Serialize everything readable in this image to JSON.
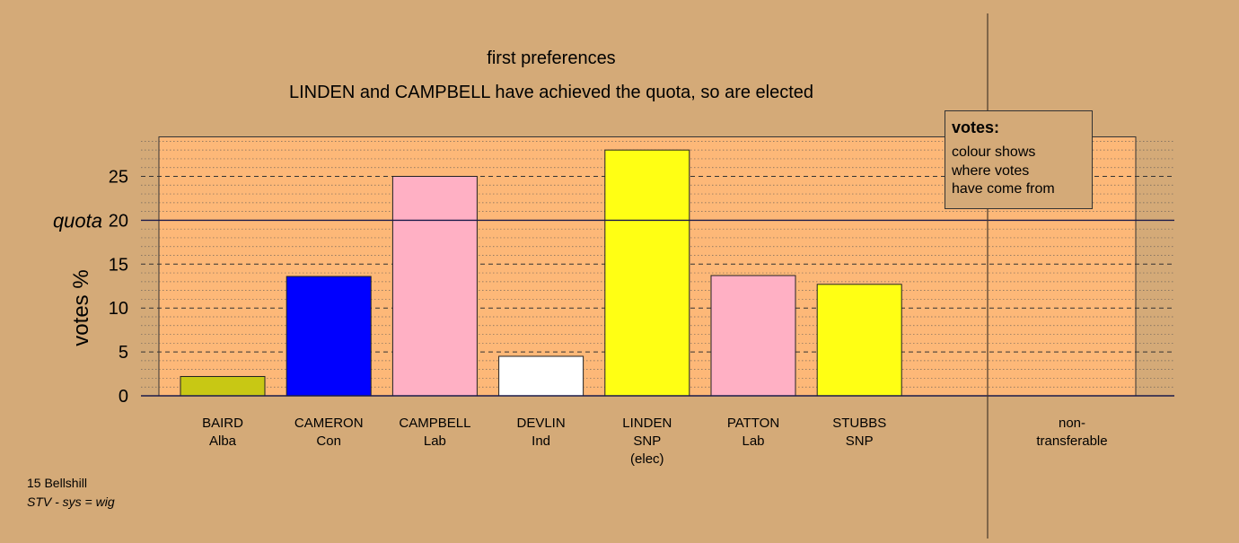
{
  "chart_data": {
    "type": "bar",
    "title": "first preferences",
    "subtitle": "LINDEN and CAMPBELL have achieved the quota, so are elected",
    "ylabel": "votes %",
    "xlabel": "",
    "ylim": [
      0,
      29.5
    ],
    "yticks": [
      0,
      5,
      10,
      15,
      20,
      25
    ],
    "quota": {
      "value": 20,
      "label": "quota"
    },
    "grid": true,
    "categories": [
      {
        "name": "BAIRD",
        "party": "Alba",
        "note": ""
      },
      {
        "name": "CAMERON",
        "party": "Con",
        "note": ""
      },
      {
        "name": "CAMPBELL",
        "party": "Lab",
        "note": ""
      },
      {
        "name": "DEVLIN",
        "party": "Ind",
        "note": ""
      },
      {
        "name": "LINDEN",
        "party": "SNP",
        "note": "(elec)"
      },
      {
        "name": "PATTON",
        "party": "Lab",
        "note": ""
      },
      {
        "name": "STUBBS",
        "party": "SNP",
        "note": ""
      }
    ],
    "values": [
      2.2,
      13.6,
      25.0,
      4.5,
      28.0,
      13.7,
      12.7
    ],
    "bar_colors": [
      "#c8c814",
      "#0000ff",
      "#ffb0c4",
      "#ffffff",
      "#ffff14",
      "#ffb0c4",
      "#ffff14"
    ],
    "non_transferable": {
      "line1": "non-",
      "line2": "transferable",
      "value": 0
    },
    "legend": {
      "title": "votes:",
      "lines": [
        "colour shows",
        "where votes",
        "have come from"
      ],
      "placement": "top-right"
    }
  },
  "footer": {
    "line1": "15 Bellshill",
    "line2": "STV - sys = wig"
  },
  "colors": {
    "background": "#d4aa78",
    "plot_area": "#fdb878",
    "axis": "#1a1a4a"
  }
}
